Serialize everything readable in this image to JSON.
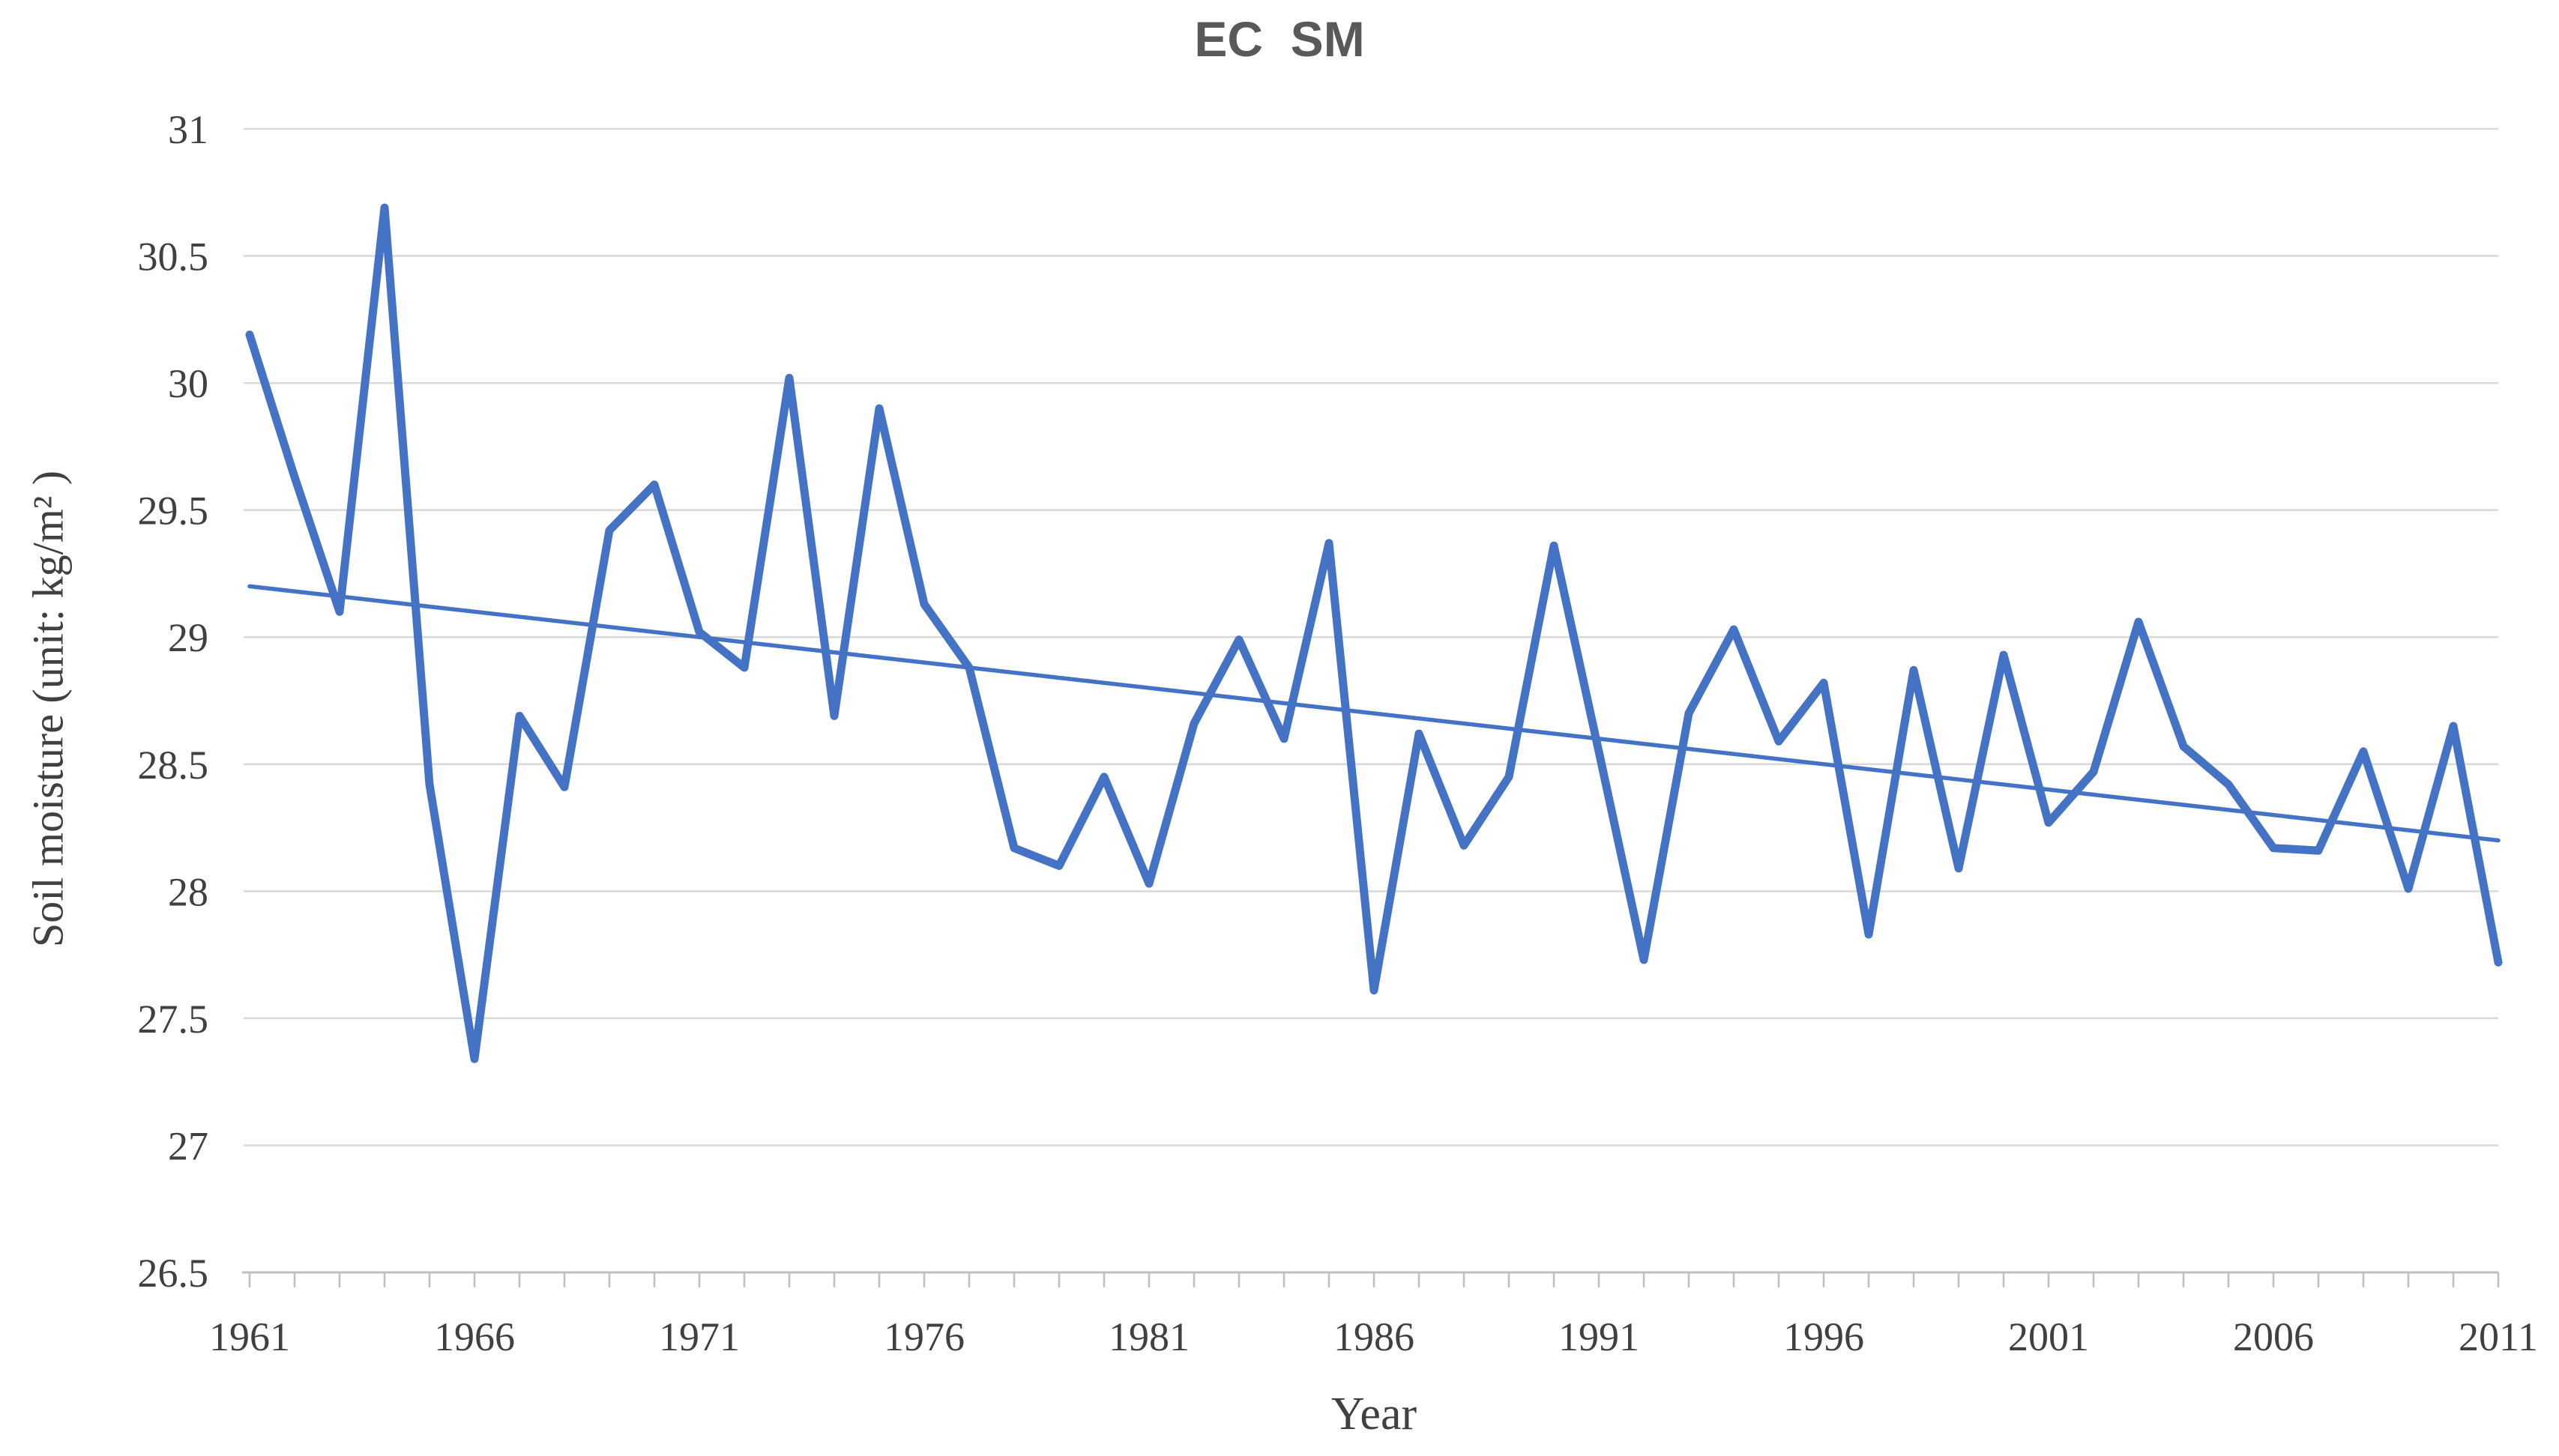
{
  "header": {
    "title": "EC  SM"
  },
  "axes": {
    "x_title": "Year",
    "y_title": "Soil moisture (unit: kg/m² )"
  },
  "style": {
    "series_color": "#4472C4",
    "trend_color": "#4472C4",
    "gridline_color": "#D9D9D9",
    "axis_line_color": "#BFBFBF",
    "tick_color": "#BFBFBF",
    "label_color": "#404040",
    "title_color": "#595959",
    "background": "#FFFFFF"
  },
  "chart_data": {
    "type": "line",
    "title": "EC  SM",
    "xlabel": "Year",
    "ylabel": "Soil moisture (unit: kg/m²)",
    "ylabel_display": "Soil moisture (unit: kg/m² )",
    "ylim": [
      26.5,
      31
    ],
    "ytick_step": 0.5,
    "yticks": [
      26.5,
      27,
      27.5,
      28,
      28.5,
      29,
      29.5,
      30,
      30.5,
      31
    ],
    "grid": "horizontal",
    "legend": "none",
    "x": [
      1961,
      1962,
      1963,
      1964,
      1965,
      1966,
      1967,
      1968,
      1969,
      1970,
      1971,
      1972,
      1973,
      1974,
      1975,
      1976,
      1977,
      1978,
      1979,
      1980,
      1981,
      1982,
      1983,
      1984,
      1985,
      1986,
      1987,
      1988,
      1989,
      1990,
      1991,
      1992,
      1993,
      1994,
      1995,
      1996,
      1997,
      1998,
      1999,
      2000,
      2001,
      2002,
      2003,
      2004,
      2005,
      2006,
      2007,
      2008,
      2009,
      2010,
      2011
    ],
    "xticks_labeled": [
      1961,
      1966,
      1971,
      1976,
      1981,
      1986,
      1991,
      1996,
      2001,
      2006,
      2011
    ],
    "xtick_minor_every": 1,
    "series": [
      {
        "name": "EC SM annual soil moisture",
        "role": "data",
        "values": [
          30.19,
          29.63,
          29.1,
          30.69,
          28.42,
          27.34,
          28.69,
          28.41,
          29.42,
          29.6,
          29.02,
          28.88,
          30.02,
          28.69,
          29.9,
          29.13,
          28.88,
          28.17,
          28.1,
          28.45,
          28.03,
          28.66,
          28.99,
          28.6,
          29.37,
          27.61,
          28.62,
          28.18,
          28.45,
          29.36,
          28.55,
          27.73,
          28.7,
          29.03,
          28.59,
          28.82,
          27.83,
          28.87,
          28.09,
          28.93,
          28.27,
          28.47,
          29.06,
          28.57,
          28.42,
          28.17,
          28.16,
          28.55,
          28.01,
          28.65,
          27.72
        ]
      },
      {
        "name": "Linear trend (EC SM)",
        "role": "trend",
        "trend": {
          "x0": 1961,
          "y0": 29.2,
          "x1": 2011,
          "y1": 28.2
        }
      }
    ]
  }
}
